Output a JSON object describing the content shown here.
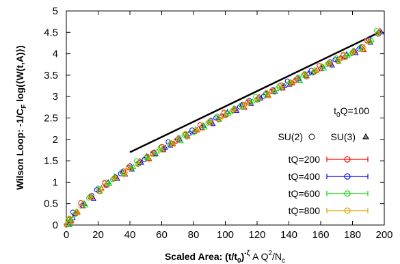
{
  "chart_data": {
    "type": "scatter",
    "title": "",
    "xlabel": {
      "main": "Scaled Area: (t/t",
      "sub0": "0",
      "after0": ")",
      "sup": "-ζ",
      "mid": " A Q",
      "sup2": "2",
      "mid2": "/N",
      "sub_c": "c"
    },
    "ylabel": {
      "main": "Wilson Loop: -1/C",
      "sub": "F",
      "rest": " log(⟨W(t,A)⟩)"
    },
    "xlim": [
      0,
      200
    ],
    "ylim": [
      0,
      5
    ],
    "xticks": [
      "0",
      "20",
      "40",
      "60",
      "80",
      "100",
      "120",
      "140",
      "160",
      "180",
      "200"
    ],
    "yticks": [
      "0",
      "0.5",
      "1",
      "1.5",
      "2",
      "2.5",
      "3",
      "3.5",
      "4",
      "4.5",
      "5"
    ],
    "grid": false,
    "legend_placement": "right",
    "annotation": {
      "prefix": "t",
      "sub": "0",
      "rest": "Q=100"
    },
    "group_legend": {
      "su2": "SU(2)",
      "su3": "SU(3)"
    },
    "fit_line": {
      "x": [
        40,
        198
      ],
      "y": [
        1.7,
        4.52
      ]
    },
    "series": [
      {
        "name": "tQ=200",
        "color": "#ff0000"
      },
      {
        "name": "tQ=400",
        "color": "#0000ff"
      },
      {
        "name": "tQ=600",
        "color": "#00dd00"
      },
      {
        "name": "tQ=800",
        "color": "#e0a000"
      }
    ],
    "points": {
      "x": [
        0,
        2,
        5,
        10,
        15,
        20,
        25,
        30,
        35,
        40,
        45,
        50,
        55,
        60,
        65,
        70,
        75,
        80,
        85,
        90,
        95,
        100,
        105,
        110,
        115,
        120,
        125,
        130,
        135,
        140,
        145,
        150,
        155,
        160,
        165,
        170,
        175,
        180,
        185,
        190,
        196
      ],
      "y": [
        0.0,
        0.12,
        0.28,
        0.48,
        0.65,
        0.82,
        0.96,
        1.1,
        1.22,
        1.34,
        1.46,
        1.57,
        1.68,
        1.79,
        1.9,
        2.0,
        2.1,
        2.2,
        2.3,
        2.4,
        2.5,
        2.6,
        2.69,
        2.78,
        2.87,
        2.96,
        3.05,
        3.14,
        3.23,
        3.32,
        3.41,
        3.5,
        3.59,
        3.68,
        3.77,
        3.86,
        3.95,
        4.04,
        4.13,
        4.3,
        4.5
      ]
    }
  }
}
